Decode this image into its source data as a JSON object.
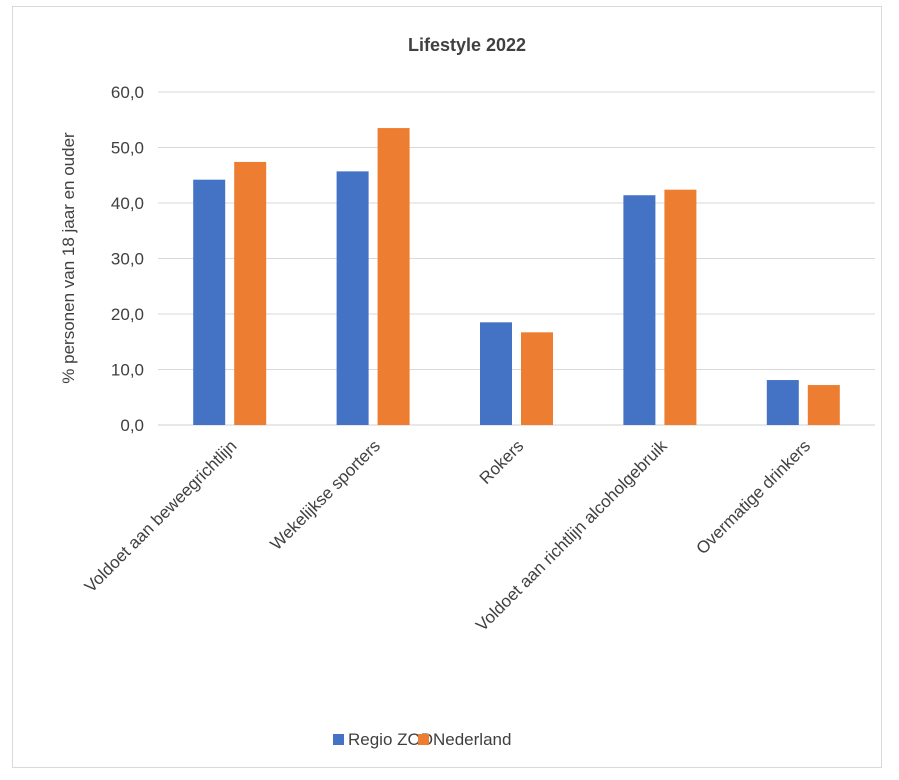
{
  "chart_data": {
    "type": "bar",
    "title": "Lifestyle 2022",
    "xlabel": "",
    "ylabel": "% personen van 18 jaar en ouder",
    "ylim": [
      0,
      60
    ],
    "yticks": [
      "0,0",
      "10,0",
      "20,0",
      "30,0",
      "40,0",
      "50,0",
      "60,0"
    ],
    "categories": [
      "Voldoet aan beweegrichtlijn",
      "Wekelijkse sporters",
      "Rokers",
      "Voldoet aan richtlijn alcoholgebruik",
      "Overmatige drinkers"
    ],
    "series": [
      {
        "name": "Regio ZOD",
        "color": "#4472C4",
        "values": [
          44.2,
          45.7,
          18.5,
          41.4,
          8.1
        ]
      },
      {
        "name": "Nederland",
        "color": "#ED7D31",
        "values": [
          47.4,
          53.5,
          16.7,
          42.4,
          7.2
        ]
      }
    ],
    "grid": true,
    "legend": "bottom"
  }
}
